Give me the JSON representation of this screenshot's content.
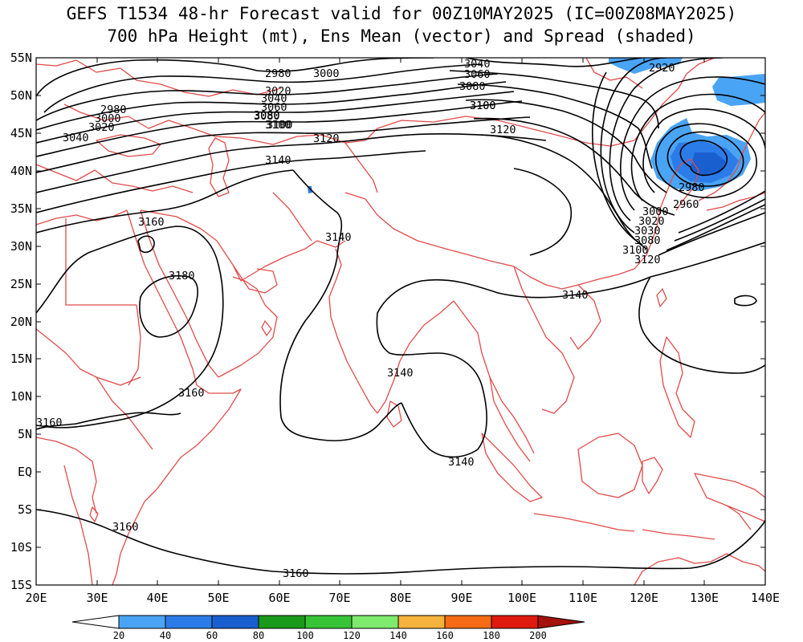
{
  "title": {
    "line1": "GEFS T1534 48-hr Forecast valid for 00Z10MAY2025 (IC=00Z08MAY2025)",
    "line2": "700 hPa Height (mt), Ens Mean (vector) and Spread (shaded)"
  },
  "lat_labels": [
    "55N",
    "50N",
    "45N",
    "40N",
    "35N",
    "30N",
    "25N",
    "20N",
    "15N",
    "10N",
    "5N",
    "EQ",
    "5S",
    "10S",
    "15S"
  ],
  "lon_labels": [
    "20E",
    "30E",
    "40E",
    "50E",
    "60E",
    "70E",
    "80E",
    "90E",
    "100E",
    "110E",
    "120E",
    "130E",
    "140E"
  ],
  "contour_labels": [
    "2980",
    "3000",
    "3020",
    "3040",
    "3060",
    "3080",
    "3100",
    "3040",
    "3060",
    "3080",
    "3100",
    "2980",
    "3000",
    "3020",
    "3040",
    "3080",
    "3100",
    "3120",
    "3140",
    "3120",
    "3100",
    "2920",
    "2960",
    "2980",
    "3000",
    "3020",
    "3030",
    "3080",
    "3100",
    "3120",
    "3160",
    "3180",
    "3140",
    "3140",
    "3160",
    "3160",
    "3140",
    "3140",
    "3160",
    "3160"
  ],
  "colorbar": {
    "labels": [
      "20",
      "40",
      "60",
      "80",
      "100",
      "120",
      "140",
      "160",
      "180",
      "200"
    ],
    "colors": [
      "#4aa4f5",
      "#2b7ce8",
      "#1a5fcf",
      "#1a9a1a",
      "#36c436",
      "#7eea6e",
      "#f5b23c",
      "#f56a14",
      "#de1a0e",
      "#a5110c"
    ]
  },
  "colors": {
    "coast": "#e24a4a",
    "contour": "#000000",
    "spread_20": "#4aa4f5",
    "spread_40": "#2b7ce8",
    "spread_60": "#1a5fcf"
  }
}
